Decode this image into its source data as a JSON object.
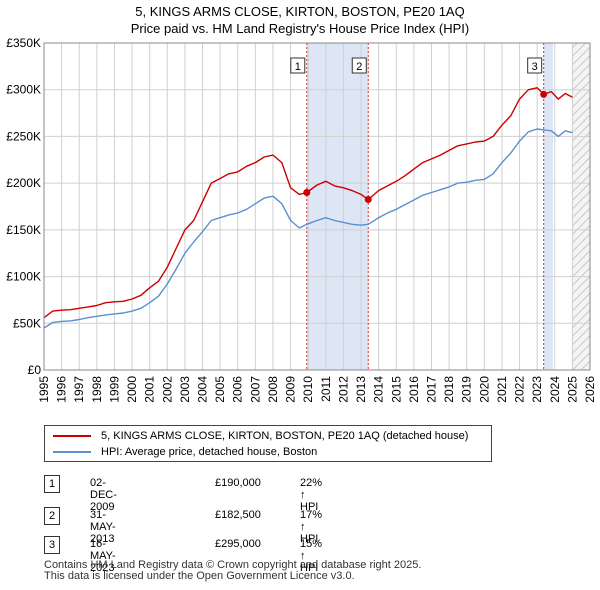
{
  "chart_data": {
    "type": "line",
    "title": "5, KINGS ARMS CLOSE, KIRTON, BOSTON, PE20 1AQ",
    "subtitle": "Price paid vs. HM Land Registry's House Price Index (HPI)",
    "xlim": [
      1995,
      2026
    ],
    "ylim": [
      0,
      350000
    ],
    "x_ticks": [
      "1995",
      "1996",
      "1997",
      "1998",
      "1999",
      "2000",
      "2001",
      "2002",
      "2003",
      "2004",
      "2005",
      "2006",
      "2007",
      "2008",
      "2009",
      "2010",
      "2011",
      "2012",
      "2013",
      "2014",
      "2015",
      "2016",
      "2017",
      "2018",
      "2019",
      "2020",
      "2021",
      "2022",
      "2023",
      "2024",
      "2025",
      "2026"
    ],
    "y_ticks": [
      {
        "label": "£0",
        "value": 0
      },
      {
        "label": "£50K",
        "value": 50000
      },
      {
        "label": "£100K",
        "value": 100000
      },
      {
        "label": "£150K",
        "value": 150000
      },
      {
        "label": "£200K",
        "value": 200000
      },
      {
        "label": "£250K",
        "value": 250000
      },
      {
        "label": "£300K",
        "value": 300000
      },
      {
        "label": "£350K",
        "value": 350000
      }
    ],
    "grid": true,
    "series": [
      {
        "name": "5, KINGS ARMS CLOSE, KIRTON, BOSTON, PE20 1AQ (detached house)",
        "color": "#cc0000",
        "points": [
          [
            1995.0,
            56000
          ],
          [
            1995.5,
            63000
          ],
          [
            1996.0,
            64000
          ],
          [
            1996.5,
            64500
          ],
          [
            1997.0,
            66000
          ],
          [
            1997.5,
            67500
          ],
          [
            1998.0,
            69000
          ],
          [
            1998.5,
            72000
          ],
          [
            1999.0,
            73000
          ],
          [
            1999.5,
            73500
          ],
          [
            2000.0,
            76000
          ],
          [
            2000.5,
            80000
          ],
          [
            2001.0,
            88000
          ],
          [
            2001.5,
            95000
          ],
          [
            2002.0,
            110000
          ],
          [
            2002.5,
            130000
          ],
          [
            2003.0,
            150000
          ],
          [
            2003.5,
            160000
          ],
          [
            2004.0,
            180000
          ],
          [
            2004.5,
            200000
          ],
          [
            2005.0,
            205000
          ],
          [
            2005.5,
            210000
          ],
          [
            2006.0,
            212000
          ],
          [
            2006.5,
            218000
          ],
          [
            2007.0,
            222000
          ],
          [
            2007.5,
            228000
          ],
          [
            2008.0,
            230000
          ],
          [
            2008.5,
            222000
          ],
          [
            2009.0,
            195000
          ],
          [
            2009.5,
            188000
          ],
          [
            2009.92,
            190000
          ],
          [
            2010.5,
            198000
          ],
          [
            2011.0,
            202000
          ],
          [
            2011.5,
            197000
          ],
          [
            2012.0,
            195000
          ],
          [
            2012.5,
            192000
          ],
          [
            2013.0,
            188000
          ],
          [
            2013.41,
            182500
          ],
          [
            2014.0,
            192000
          ],
          [
            2014.5,
            197000
          ],
          [
            2015.0,
            202000
          ],
          [
            2015.5,
            208000
          ],
          [
            2016.0,
            215000
          ],
          [
            2016.5,
            222000
          ],
          [
            2017.0,
            226000
          ],
          [
            2017.5,
            230000
          ],
          [
            2018.0,
            235000
          ],
          [
            2018.5,
            240000
          ],
          [
            2019.0,
            242000
          ],
          [
            2019.5,
            244000
          ],
          [
            2020.0,
            245000
          ],
          [
            2020.5,
            250000
          ],
          [
            2021.0,
            262000
          ],
          [
            2021.5,
            272000
          ],
          [
            2022.0,
            290000
          ],
          [
            2022.5,
            300000
          ],
          [
            2023.0,
            302000
          ],
          [
            2023.37,
            295000
          ],
          [
            2023.8,
            298000
          ],
          [
            2024.2,
            290000
          ],
          [
            2024.6,
            296000
          ],
          [
            2025.0,
            292000
          ]
        ]
      },
      {
        "name": "HPI: Average price, detached house, Boston",
        "color": "#5b8fd0",
        "points": [
          [
            1995.0,
            45000
          ],
          [
            1995.5,
            51000
          ],
          [
            1996.0,
            52000
          ],
          [
            1996.5,
            52500
          ],
          [
            1997.0,
            54000
          ],
          [
            1997.5,
            56000
          ],
          [
            1998.0,
            57500
          ],
          [
            1998.5,
            59000
          ],
          [
            1999.0,
            60000
          ],
          [
            1999.5,
            61000
          ],
          [
            2000.0,
            63000
          ],
          [
            2000.5,
            66000
          ],
          [
            2001.0,
            72000
          ],
          [
            2001.5,
            79000
          ],
          [
            2002.0,
            92000
          ],
          [
            2002.5,
            108000
          ],
          [
            2003.0,
            125000
          ],
          [
            2003.5,
            137000
          ],
          [
            2004.0,
            148000
          ],
          [
            2004.5,
            160000
          ],
          [
            2005.0,
            163000
          ],
          [
            2005.5,
            166000
          ],
          [
            2006.0,
            168000
          ],
          [
            2006.5,
            172000
          ],
          [
            2007.0,
            178000
          ],
          [
            2007.5,
            184000
          ],
          [
            2008.0,
            186000
          ],
          [
            2008.5,
            178000
          ],
          [
            2009.0,
            160000
          ],
          [
            2009.5,
            152000
          ],
          [
            2009.92,
            156000
          ],
          [
            2010.5,
            160000
          ],
          [
            2011.0,
            163000
          ],
          [
            2011.5,
            160000
          ],
          [
            2012.0,
            158000
          ],
          [
            2012.5,
            156000
          ],
          [
            2013.0,
            155000
          ],
          [
            2013.41,
            156000
          ],
          [
            2014.0,
            163000
          ],
          [
            2014.5,
            168000
          ],
          [
            2015.0,
            172000
          ],
          [
            2015.5,
            177000
          ],
          [
            2016.0,
            182000
          ],
          [
            2016.5,
            187000
          ],
          [
            2017.0,
            190000
          ],
          [
            2017.5,
            193000
          ],
          [
            2018.0,
            196000
          ],
          [
            2018.5,
            200000
          ],
          [
            2019.0,
            201000
          ],
          [
            2019.5,
            203000
          ],
          [
            2020.0,
            204000
          ],
          [
            2020.5,
            210000
          ],
          [
            2021.0,
            222000
          ],
          [
            2021.5,
            232000
          ],
          [
            2022.0,
            245000
          ],
          [
            2022.5,
            255000
          ],
          [
            2023.0,
            258000
          ],
          [
            2023.37,
            257000
          ],
          [
            2023.8,
            256000
          ],
          [
            2024.2,
            250000
          ],
          [
            2024.6,
            256000
          ],
          [
            2025.0,
            254000
          ]
        ]
      }
    ],
    "sales": [
      {
        "label": "1",
        "x": 2009.92,
        "price_value": 190000,
        "date": "02-DEC-2009",
        "price": "£190,000",
        "hpi": "22% ↑ HPI"
      },
      {
        "label": "2",
        "x": 2013.41,
        "price_value": 182500,
        "date": "31-MAY-2013",
        "price": "£182,500",
        "hpi": "17% ↑ HPI"
      },
      {
        "label": "3",
        "x": 2023.37,
        "price_value": 295000,
        "date": "16-MAY-2023",
        "price": "£295,000",
        "hpi": "15% ↑ HPI"
      }
    ],
    "shaded_ranges": [
      [
        2009.92,
        2013.41
      ],
      [
        2023.37,
        2023.9
      ]
    ],
    "hatched_from": 2025.0
  },
  "legend": {
    "property": "5, KINGS ARMS CLOSE, KIRTON, BOSTON, PE20 1AQ (detached house)",
    "hpi": "HPI: Average price, detached house, Boston"
  },
  "footer": {
    "line1": "Contains HM Land Registry data © Crown copyright and database right 2025.",
    "line2": "This data is licensed under the Open Government Licence v3.0."
  },
  "colors": {
    "property": "#cc0000",
    "hpi": "#5b8fd0",
    "shade": "#dde6f5",
    "grid": "#d0d0d0",
    "marker_border": "#333333"
  }
}
